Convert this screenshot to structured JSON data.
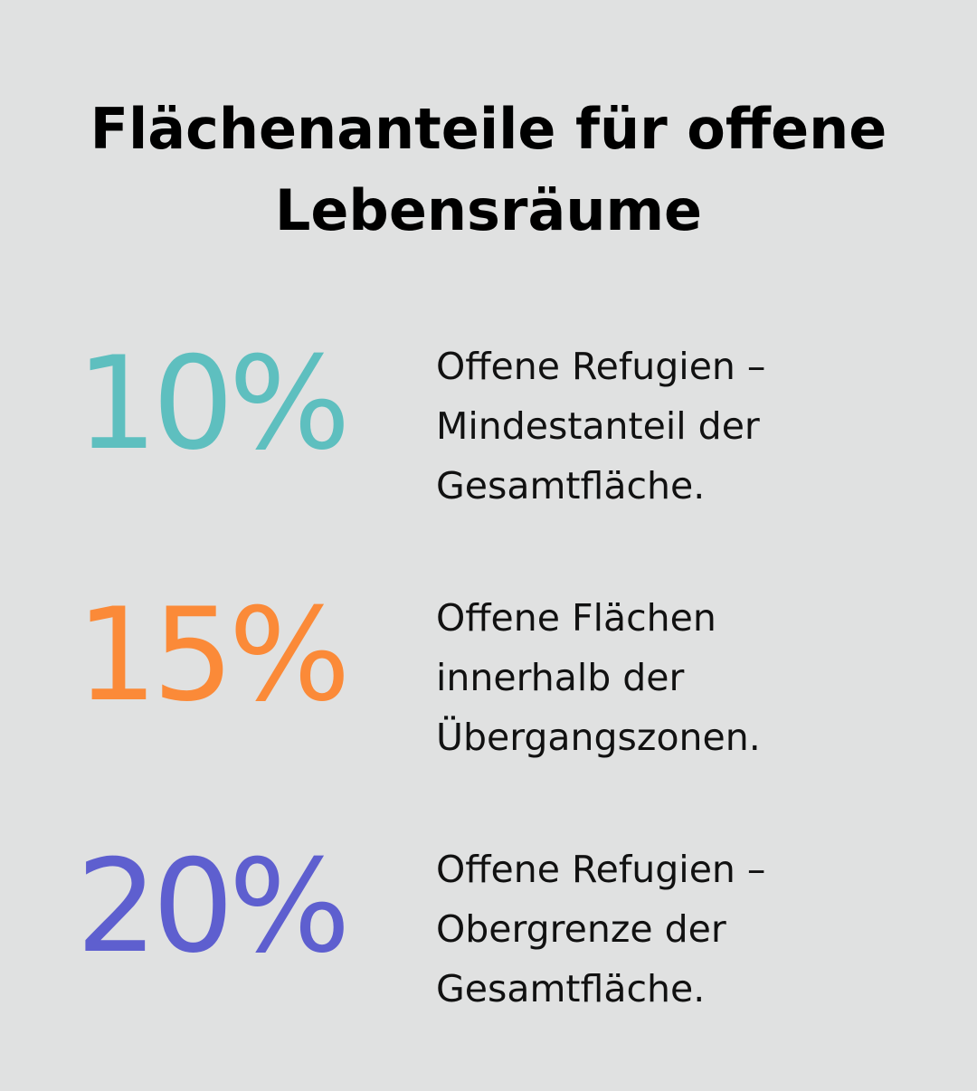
{
  "title": {
    "line1": "Flächenanteile für offene",
    "line2": "Lebensräume"
  },
  "stats": [
    {
      "value": "10%",
      "color": "#5ebfbf",
      "description": [
        "Offene Refugien –",
        "Mindestanteil der",
        "Gesamtfläche."
      ]
    },
    {
      "value": "15%",
      "color": "#fb8a38",
      "description": [
        "Offene Flächen",
        "innerhalb der",
        "Übergangszonen."
      ]
    },
    {
      "value": "20%",
      "color": "#5e5fcf",
      "description": [
        "Offene Refugien –",
        "Obergrenze der",
        "Gesamtfläche."
      ]
    }
  ]
}
